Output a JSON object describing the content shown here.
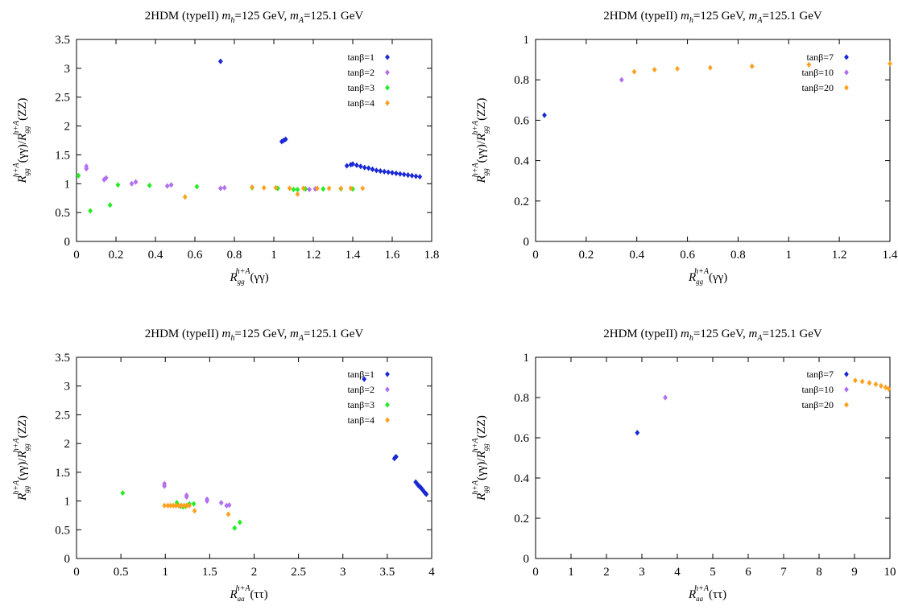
{
  "chart_data": [
    {
      "type": "scatter",
      "title_html": "2HDM (typeII) m_h=125 GeV, m_A=125.1 GeV",
      "title_parts": [
        "2HDM (typeII) ",
        "m",
        "h",
        "=125 GeV, ",
        "m",
        "A",
        "=125.1 GeV"
      ],
      "xlabel_parts": [
        "R",
        "gg",
        "h+A",
        "(γγ)"
      ],
      "ylabel_parts": [
        "R",
        "gg",
        "h+A",
        "(γγ)/",
        "R",
        "gg",
        "h+A",
        "(ZZ)"
      ],
      "xlim": [
        0,
        1.8
      ],
      "ylim": [
        0,
        3.5
      ],
      "xticks": [
        "0",
        "0.2",
        "0.4",
        "0.6",
        "0.8",
        "1",
        "1.2",
        "1.4",
        "1.6",
        "1.8"
      ],
      "yticks": [
        "0",
        "0.5",
        "1",
        "1.5",
        "2",
        "2.5",
        "3",
        "3.5"
      ],
      "legend_position": "top-right",
      "series": [
        {
          "name": "tanβ=1",
          "color": "#1a28d6",
          "points": [
            [
              0.73,
              3.12
            ],
            [
              1.04,
              1.73
            ],
            [
              1.05,
              1.75
            ],
            [
              1.06,
              1.77
            ],
            [
              1.37,
              1.31
            ],
            [
              1.39,
              1.33
            ],
            [
              1.4,
              1.34
            ],
            [
              1.42,
              1.32
            ],
            [
              1.44,
              1.3
            ],
            [
              1.46,
              1.28
            ],
            [
              1.48,
              1.27
            ],
            [
              1.5,
              1.25
            ],
            [
              1.52,
              1.23
            ],
            [
              1.54,
              1.22
            ],
            [
              1.56,
              1.21
            ],
            [
              1.58,
              1.2
            ],
            [
              1.6,
              1.19
            ],
            [
              1.62,
              1.18
            ],
            [
              1.64,
              1.17
            ],
            [
              1.66,
              1.16
            ],
            [
              1.68,
              1.15
            ],
            [
              1.7,
              1.14
            ],
            [
              1.72,
              1.13
            ],
            [
              1.74,
              1.12
            ]
          ]
        },
        {
          "name": "tanβ=2",
          "color": "#b070f0",
          "points": [
            [
              0.05,
              1.3
            ],
            [
              0.05,
              1.26
            ],
            [
              0.15,
              1.1
            ],
            [
              0.14,
              1.07
            ],
            [
              0.28,
              1.0
            ],
            [
              0.3,
              1.03
            ],
            [
              0.48,
              0.98
            ],
            [
              0.46,
              0.96
            ],
            [
              0.73,
              0.92
            ],
            [
              0.75,
              0.93
            ],
            [
              1.02,
              0.92
            ],
            [
              1.16,
              0.91
            ],
            [
              1.18,
              0.9
            ],
            [
              1.21,
              0.91
            ]
          ]
        },
        {
          "name": "tanβ=3",
          "color": "#22ee22",
          "points": [
            [
              0.01,
              1.14
            ],
            [
              0.07,
              0.53
            ],
            [
              0.17,
              0.63
            ],
            [
              0.21,
              0.98
            ],
            [
              0.37,
              0.97
            ],
            [
              0.61,
              0.95
            ],
            [
              0.89,
              0.93
            ],
            [
              1.02,
              0.92
            ],
            [
              1.1,
              0.9
            ],
            [
              1.12,
              0.9
            ],
            [
              1.16,
              0.91
            ],
            [
              1.25,
              0.91
            ],
            [
              1.34,
              0.91
            ],
            [
              1.4,
              0.91
            ]
          ]
        },
        {
          "name": "tanβ=4",
          "color": "#ffa020",
          "points": [
            [
              0.55,
              0.77
            ],
            [
              0.89,
              0.94
            ],
            [
              0.95,
              0.93
            ],
            [
              1.01,
              0.93
            ],
            [
              1.08,
              0.92
            ],
            [
              1.12,
              0.82
            ],
            [
              1.15,
              0.92
            ],
            [
              1.22,
              0.92
            ],
            [
              1.28,
              0.92
            ],
            [
              1.34,
              0.92
            ],
            [
              1.39,
              0.92
            ],
            [
              1.45,
              0.92
            ]
          ]
        }
      ]
    },
    {
      "type": "scatter",
      "title_parts": [
        "2HDM (typeII) ",
        "m",
        "h",
        "=125 GeV, ",
        "m",
        "A",
        "=125.1 GeV"
      ],
      "xlabel_parts": [
        "R",
        "gg",
        "h+A",
        "(γγ)"
      ],
      "ylabel_parts": [
        "R",
        "gg",
        "h+A",
        "(γγ)/",
        "R",
        "gg",
        "h+A",
        "(ZZ)"
      ],
      "xlim": [
        0,
        1.4
      ],
      "ylim": [
        0,
        1.0
      ],
      "xticks": [
        "0",
        "0.2",
        "0.4",
        "0.6",
        "0.8",
        "1",
        "1.2",
        "1.4"
      ],
      "yticks": [
        "0",
        "0.2",
        "0.4",
        "0.6",
        "0.8",
        "1"
      ],
      "legend_position": "top-right",
      "series": [
        {
          "name": "tanβ=7",
          "color": "#1a28d6",
          "points": [
            [
              0.035,
              0.625
            ]
          ]
        },
        {
          "name": "tanβ=10",
          "color": "#b070f0",
          "points": [
            [
              0.34,
              0.8
            ]
          ]
        },
        {
          "name": "tanβ=20",
          "color": "#ffa020",
          "points": [
            [
              0.39,
              0.84
            ],
            [
              0.47,
              0.85
            ],
            [
              0.56,
              0.855
            ],
            [
              0.69,
              0.86
            ],
            [
              0.855,
              0.867
            ],
            [
              1.08,
              0.875
            ],
            [
              1.4,
              0.88
            ]
          ]
        }
      ]
    },
    {
      "type": "scatter",
      "title_parts": [
        "2HDM (typeII) ",
        "m",
        "h",
        "=125 GeV, ",
        "m",
        "A",
        "=125.1 GeV"
      ],
      "xlabel_parts": [
        "R",
        "aa",
        "h+A",
        "(ττ)"
      ],
      "ylabel_parts": [
        "R",
        "gg",
        "h+A",
        "(γγ)/",
        "R",
        "gg",
        "h+A",
        "(ZZ)"
      ],
      "xlim": [
        0,
        4
      ],
      "ylim": [
        0,
        3.5
      ],
      "xticks": [
        "0",
        "0.5",
        "1",
        "1.5",
        "2",
        "2.5",
        "3",
        "3.5",
        "4"
      ],
      "yticks": [
        "0",
        "0.5",
        "1",
        "1.5",
        "2",
        "2.5",
        "3",
        "3.5"
      ],
      "legend_position": "top-right",
      "series": [
        {
          "name": "tanβ=1",
          "color": "#1a28d6",
          "points": [
            [
              3.24,
              3.12
            ],
            [
              3.58,
              1.74
            ],
            [
              3.59,
              1.76
            ],
            [
              3.6,
              1.77
            ],
            [
              3.82,
              1.33
            ],
            [
              3.83,
              1.31
            ],
            [
              3.84,
              1.29
            ],
            [
              3.85,
              1.27
            ],
            [
              3.86,
              1.26
            ],
            [
              3.87,
              1.24
            ],
            [
              3.88,
              1.23
            ],
            [
              3.89,
              1.21
            ],
            [
              3.9,
              1.19
            ],
            [
              3.91,
              1.17
            ],
            [
              3.92,
              1.15
            ],
            [
              3.93,
              1.13
            ],
            [
              3.94,
              1.12
            ]
          ]
        },
        {
          "name": "tanβ=2",
          "color": "#b070f0",
          "points": [
            [
              0.99,
              1.3
            ],
            [
              0.99,
              1.26
            ],
            [
              1.24,
              1.1
            ],
            [
              1.24,
              1.07
            ],
            [
              1.47,
              1.03
            ],
            [
              1.47,
              1.0
            ],
            [
              1.63,
              0.97
            ],
            [
              1.69,
              0.92
            ],
            [
              1.72,
              0.93
            ]
          ]
        },
        {
          "name": "tanβ=3",
          "color": "#22ee22",
          "points": [
            [
              0.52,
              1.14
            ],
            [
              1.13,
              0.97
            ],
            [
              1.17,
              0.91
            ],
            [
              1.2,
              0.9
            ],
            [
              1.23,
              0.91
            ],
            [
              1.27,
              0.95
            ],
            [
              1.32,
              0.95
            ],
            [
              1.78,
              0.53
            ],
            [
              1.84,
              0.63
            ]
          ]
        },
        {
          "name": "tanβ=4",
          "color": "#ffa020",
          "points": [
            [
              0.99,
              0.92
            ],
            [
              1.03,
              0.92
            ],
            [
              1.06,
              0.92
            ],
            [
              1.09,
              0.92
            ],
            [
              1.12,
              0.92
            ],
            [
              1.15,
              0.92
            ],
            [
              1.18,
              0.92
            ],
            [
              1.21,
              0.92
            ],
            [
              1.24,
              0.92
            ],
            [
              1.27,
              0.92
            ],
            [
              1.33,
              0.83
            ],
            [
              1.71,
              0.77
            ]
          ]
        }
      ]
    },
    {
      "type": "scatter",
      "title_parts": [
        "2HDM (typeII) ",
        "m",
        "h",
        "=125 GeV, ",
        "m",
        "A",
        "=125.1 GeV"
      ],
      "xlabel_parts": [
        "R",
        "aa",
        "h+A",
        "(ττ)"
      ],
      "ylabel_parts": [
        "R",
        "gg",
        "h+A",
        "(γγ)/",
        "R",
        "gg",
        "h+A",
        "(ZZ)"
      ],
      "xlim": [
        0,
        10
      ],
      "ylim": [
        0,
        1.0
      ],
      "xticks": [
        "0",
        "1",
        "2",
        "3",
        "4",
        "5",
        "6",
        "7",
        "8",
        "9",
        "10"
      ],
      "yticks": [
        "0",
        "0.2",
        "0.4",
        "0.6",
        "0.8",
        "1"
      ],
      "legend_position": "top-right",
      "series": [
        {
          "name": "tanβ=7",
          "color": "#1a28d6",
          "points": [
            [
              2.87,
              0.625
            ]
          ]
        },
        {
          "name": "tanβ=10",
          "color": "#b070f0",
          "points": [
            [
              3.66,
              0.8
            ]
          ]
        },
        {
          "name": "tanβ=20",
          "color": "#ffa020",
          "points": [
            [
              9.02,
              0.885
            ],
            [
              9.22,
              0.88
            ],
            [
              9.42,
              0.873
            ],
            [
              9.6,
              0.866
            ],
            [
              9.75,
              0.858
            ],
            [
              9.88,
              0.85
            ],
            [
              9.97,
              0.843
            ]
          ]
        }
      ]
    }
  ]
}
